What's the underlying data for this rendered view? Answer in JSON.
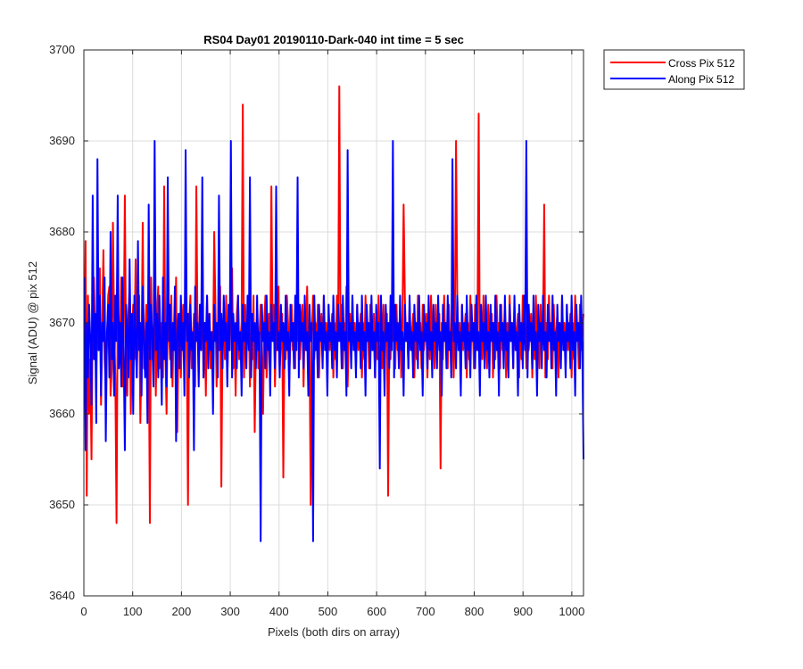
{
  "chart_data": {
    "type": "line",
    "title": "RS04 Day01 20190110-Dark-040 int time = 5 sec",
    "xlabel": "Pixels (both dirs on array)",
    "ylabel": "Signal (ADU) @ pix 512",
    "xlim": [
      0,
      1024
    ],
    "ylim": [
      3640,
      3700
    ],
    "x_ticks": [
      0,
      100,
      200,
      300,
      400,
      500,
      600,
      700,
      800,
      900,
      1000
    ],
    "y_ticks": [
      3640,
      3650,
      3660,
      3670,
      3680,
      3690,
      3700
    ],
    "grid": true,
    "legend_position": "outside top-right",
    "series": [
      {
        "name": "Cross Pix 512",
        "color": "#ff0000",
        "x_start": 1,
        "x_step": 1,
        "values": [
          3665,
          3679,
          3651,
          3673,
          3660,
          3666,
          3655,
          3672,
          3675,
          3669,
          3664,
          3672,
          3667,
          3676,
          3661,
          3670,
          3678,
          3666,
          3663,
          3668,
          3673,
          3674,
          3662,
          3665,
          3681,
          3669,
          3664,
          3648,
          3672,
          3670,
          3667,
          3675,
          3663,
          3668,
          3684,
          3666,
          3662,
          3671,
          3674,
          3660,
          3669,
          3672,
          3666,
          3677,
          3664,
          3670,
          3673,
          3659,
          3667,
          3681,
          3665,
          3668,
          3672,
          3663,
          3670,
          3648,
          3675,
          3666,
          3669,
          3672,
          3662,
          3671,
          3674,
          3665,
          3668,
          3670,
          3664,
          3685,
          3667,
          3660,
          3672,
          3669,
          3666,
          3673,
          3663,
          3670,
          3667,
          3675,
          3658,
          3668,
          3671,
          3664,
          3669,
          3672,
          3666,
          3679,
          3667,
          3650,
          3670,
          3673,
          3665,
          3668,
          3671,
          3663,
          3685,
          3669,
          3666,
          3672,
          3667,
          3674,
          3664,
          3670,
          3662,
          3673,
          3668,
          3671,
          3665,
          3669,
          3666,
          3680,
          3672,
          3663,
          3670,
          3667,
          3674,
          3652,
          3669,
          3671,
          3666,
          3673,
          3664,
          3670,
          3667,
          3672,
          3676,
          3665,
          3669,
          3662,
          3671,
          3673,
          3666,
          3668,
          3670,
          3694,
          3664,
          3672,
          3667,
          3669,
          3671,
          3663,
          3670,
          3666,
          3673,
          3658,
          3668,
          3671,
          3665,
          3669,
          3672,
          3667,
          3660,
          3670,
          3673,
          3664,
          3668,
          3671,
          3666,
          3685,
          3669,
          3672,
          3663,
          3670,
          3667,
          3674,
          3665,
          3668,
          3671,
          3653,
          3669,
          3666,
          3673,
          3670,
          3664,
          3668,
          3672,
          3667,
          3670,
          3665,
          3673,
          3668,
          3671,
          3666,
          3669,
          3672,
          3663,
          3670,
          3667,
          3674,
          3665,
          3668,
          3650,
          3669,
          3673,
          3666,
          3670,
          3667,
          3672,
          3664,
          3669,
          3671,
          3666,
          3673,
          3668,
          3670,
          3665,
          3672,
          3667,
          3669,
          3671,
          3664,
          3670,
          3666,
          3673,
          3668,
          3696,
          3669,
          3672,
          3665,
          3670,
          3667,
          3674,
          3663,
          3669,
          3671,
          3666,
          3673,
          3668,
          3670,
          3665,
          3672,
          3667,
          3669,
          3671,
          3664,
          3670,
          3666,
          3673,
          3668,
          3670,
          3665,
          3672,
          3667,
          3669,
          3671,
          3664,
          3670,
          3666,
          3673,
          3668,
          3670,
          3665,
          3672,
          3667,
          3669,
          3671,
          3651,
          3670,
          3666,
          3673,
          3668,
          3670,
          3665,
          3672,
          3667,
          3669,
          3671,
          3664,
          3670,
          3683,
          3673,
          3668,
          3670,
          3665,
          3672,
          3667,
          3669,
          3671,
          3664,
          3670,
          3666,
          3673,
          3668,
          3670,
          3665,
          3672,
          3667,
          3669,
          3671,
          3664,
          3670,
          3666,
          3673,
          3668,
          3670,
          3665,
          3672,
          3667,
          3669,
          3671,
          3654,
          3670,
          3666,
          3673,
          3668,
          3670,
          3665,
          3672,
          3667,
          3669,
          3671,
          3664,
          3670,
          3690,
          3673,
          3668,
          3670,
          3665,
          3672,
          3667,
          3669,
          3671,
          3664,
          3670,
          3666,
          3673,
          3668,
          3670,
          3665,
          3672,
          3667,
          3669,
          3693,
          3664,
          3670,
          3666,
          3673,
          3668,
          3670,
          3665,
          3672,
          3667,
          3669,
          3671,
          3664,
          3670,
          3666,
          3673,
          3668,
          3670,
          3665,
          3672,
          3667,
          3669,
          3671,
          3664,
          3670,
          3666,
          3673,
          3668,
          3670,
          3665,
          3672,
          3667,
          3669,
          3671,
          3664,
          3670,
          3666,
          3673,
          3668,
          3670,
          3665,
          3672,
          3667,
          3669,
          3671,
          3664,
          3670,
          3666,
          3673,
          3668,
          3670,
          3665,
          3672,
          3667,
          3669,
          3683,
          3664,
          3670,
          3666,
          3673,
          3668,
          3670,
          3665,
          3672,
          3667,
          3669,
          3671,
          3664,
          3670,
          3666,
          3673,
          3668,
          3670,
          3665,
          3672,
          3667,
          3669,
          3671,
          3664,
          3670,
          3666,
          3673,
          3668,
          3670,
          3665,
          3672,
          3667,
          3669,
          3671
        ]
      },
      {
        "name": "Along Pix 512",
        "color": "#0000ff",
        "x_start": 1,
        "x_step": 1,
        "values": [
          3675,
          3656,
          3670,
          3664,
          3672,
          3668,
          3661,
          3684,
          3666,
          3671,
          3659,
          3688,
          3667,
          3673,
          3662,
          3670,
          3668,
          3675,
          3657,
          3669,
          3672,
          3664,
          3680,
          3666,
          3670,
          3662,
          3673,
          3668,
          3684,
          3665,
          3670,
          3663,
          3675,
          3667,
          3656,
          3672,
          3669,
          3664,
          3677,
          3666,
          3671,
          3660,
          3673,
          3668,
          3664,
          3679,
          3667,
          3670,
          3662,
          3674,
          3668,
          3664,
          3670,
          3659,
          3683,
          3666,
          3672,
          3668,
          3663,
          3690,
          3667,
          3671,
          3664,
          3673,
          3668,
          3661,
          3675,
          3666,
          3670,
          3663,
          3686,
          3668,
          3672,
          3664,
          3670,
          3667,
          3674,
          3657,
          3669,
          3671,
          3665,
          3673,
          3667,
          3670,
          3662,
          3689,
          3668,
          3671,
          3664,
          3672,
          3667,
          3669,
          3656,
          3674,
          3668,
          3670,
          3663,
          3672,
          3667,
          3686,
          3664,
          3670,
          3668,
          3673,
          3665,
          3671,
          3667,
          3669,
          3660,
          3672,
          3668,
          3670,
          3664,
          3684,
          3667,
          3671,
          3665,
          3673,
          3668,
          3670,
          3663,
          3672,
          3667,
          3690,
          3664,
          3671,
          3668,
          3670,
          3665,
          3673,
          3667,
          3669,
          3662,
          3672,
          3668,
          3670,
          3665,
          3673,
          3667,
          3686,
          3664,
          3671,
          3668,
          3670,
          3665,
          3673,
          3667,
          3669,
          3646,
          3672,
          3668,
          3670,
          3665,
          3673,
          3667,
          3669,
          3662,
          3672,
          3668,
          3670,
          3665,
          3685,
          3667,
          3669,
          3664,
          3672,
          3668,
          3670,
          3665,
          3673,
          3667,
          3669,
          3662,
          3672,
          3668,
          3670,
          3665,
          3673,
          3667,
          3686,
          3664,
          3672,
          3668,
          3670,
          3665,
          3673,
          3667,
          3669,
          3662,
          3672,
          3668,
          3670,
          3646,
          3673,
          3667,
          3669,
          3664,
          3672,
          3668,
          3670,
          3665,
          3673,
          3667,
          3669,
          3662,
          3672,
          3668,
          3670,
          3665,
          3673,
          3667,
          3669,
          3664,
          3672,
          3668,
          3670,
          3665,
          3673,
          3667,
          3669,
          3662,
          3689,
          3668,
          3670,
          3665,
          3673,
          3667,
          3669,
          3664,
          3672,
          3668,
          3670,
          3665,
          3673,
          3667,
          3669,
          3662,
          3672,
          3668,
          3670,
          3665,
          3673,
          3667,
          3669,
          3664,
          3672,
          3668,
          3670,
          3654,
          3673,
          3667,
          3669,
          3662,
          3672,
          3668,
          3670,
          3665,
          3673,
          3667,
          3690,
          3664,
          3672,
          3668,
          3670,
          3665,
          3673,
          3667,
          3669,
          3662,
          3672,
          3668,
          3670,
          3665,
          3673,
          3667,
          3669,
          3664,
          3672,
          3668,
          3670,
          3665,
          3673,
          3667,
          3669,
          3662,
          3672,
          3668,
          3670,
          3665,
          3673,
          3667,
          3669,
          3664,
          3672,
          3668,
          3670,
          3665,
          3673,
          3667,
          3669,
          3662,
          3672,
          3668,
          3670,
          3665,
          3673,
          3667,
          3669,
          3664,
          3688,
          3668,
          3670,
          3665,
          3673,
          3667,
          3669,
          3662,
          3672,
          3668,
          3670,
          3665,
          3673,
          3667,
          3669,
          3664,
          3672,
          3668,
          3670,
          3665,
          3673,
          3667,
          3669,
          3662,
          3672,
          3668,
          3670,
          3665,
          3673,
          3667,
          3669,
          3664,
          3672,
          3668,
          3670,
          3665,
          3673,
          3667,
          3669,
          3662,
          3672,
          3668,
          3670,
          3665,
          3673,
          3667,
          3669,
          3664,
          3672,
          3668,
          3670,
          3665,
          3673,
          3667,
          3669,
          3662,
          3672,
          3668,
          3670,
          3665,
          3673,
          3667,
          3690,
          3664,
          3672,
          3668,
          3670,
          3665,
          3673,
          3667,
          3669,
          3662,
          3672,
          3668,
          3670,
          3665,
          3673,
          3667,
          3669,
          3664,
          3672,
          3668,
          3670,
          3665,
          3673,
          3667,
          3669,
          3662,
          3672,
          3668,
          3670,
          3665,
          3673,
          3667,
          3669,
          3664,
          3672,
          3668,
          3670,
          3665,
          3673,
          3667,
          3669,
          3662,
          3672,
          3668,
          3670,
          3665,
          3673,
          3667,
          3655
        ]
      }
    ]
  }
}
